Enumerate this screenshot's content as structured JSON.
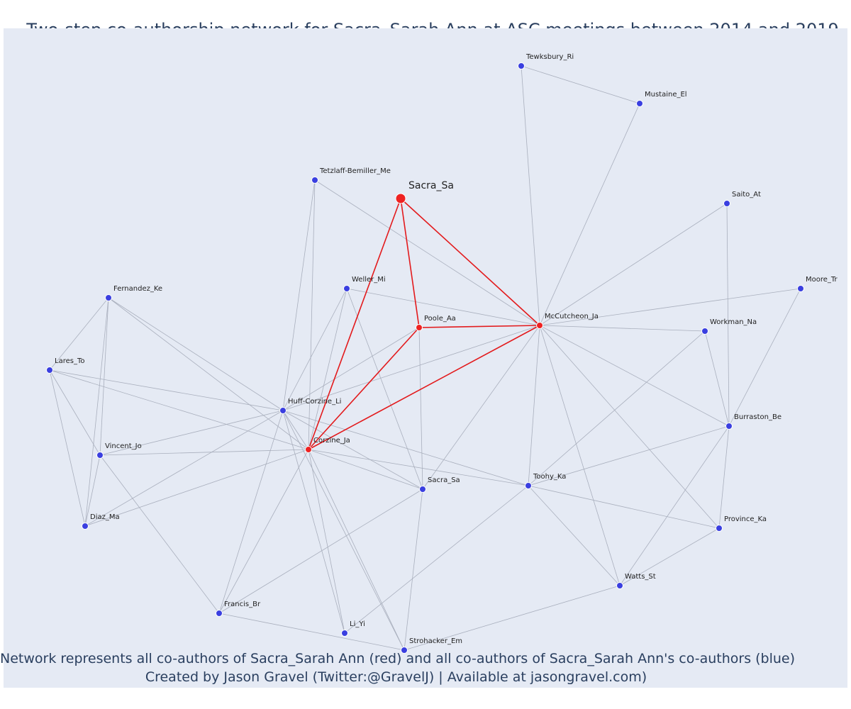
{
  "title": "Two-step co-authorship network for Sacra_Sarah Ann at ASC meetings between 2014 and 2019",
  "footer": {
    "line1": "Network represents all co-authors of Sacra_Sarah Ann (red) and all co-authors of Sacra_Sarah Ann's co-authors (blue)",
    "line2": "Created by Jason Gravel (Twitter:@GravelJ) | Available at jasongravel.com)"
  },
  "colors": {
    "background": "#e5eaf4",
    "red": "#ee2222",
    "blue": "#3a3fe0",
    "edge_gray": "#a9afbd",
    "edge_red": "#e31a1c",
    "text": "#2a3f5f"
  },
  "focus_node": "Sacra_Sa",
  "nodes": [
    {
      "id": "Sacra_Sa_focus",
      "label": "Sacra_Sa",
      "group": "focus"
    },
    {
      "id": "Poole_Aa",
      "label": "Poole_Aa",
      "group": "red"
    },
    {
      "id": "McCutcheon_Ja",
      "label": "McCutcheon_Ja",
      "group": "red"
    },
    {
      "id": "Corzine_Ja",
      "label": "Corzine_Ja",
      "group": "red"
    },
    {
      "id": "Tewksbury_Ri",
      "label": "Tewksbury_Ri",
      "group": "blue"
    },
    {
      "id": "Mustaine_El",
      "label": "Mustaine_El",
      "group": "blue"
    },
    {
      "id": "Tetzlaff-Bemiller_Me",
      "label": "Tetzlaff-Bemiller_Me",
      "group": "blue"
    },
    {
      "id": "Saito_At",
      "label": "Saito_At",
      "group": "blue"
    },
    {
      "id": "Weller_Mi",
      "label": "Weller_Mi",
      "group": "blue"
    },
    {
      "id": "Moore_Tr",
      "label": "Moore_Tr",
      "group": "blue"
    },
    {
      "id": "Fernandez_Ke",
      "label": "Fernandez_Ke",
      "group": "blue"
    },
    {
      "id": "Workman_Na",
      "label": "Workman_Na",
      "group": "blue"
    },
    {
      "id": "Lares_To",
      "label": "Lares_To",
      "group": "blue"
    },
    {
      "id": "Huff-Corzine_Li",
      "label": "Huff-Corzine_Li",
      "group": "blue"
    },
    {
      "id": "Burraston_Be",
      "label": "Burraston_Be",
      "group": "blue"
    },
    {
      "id": "Vincent_Jo",
      "label": "Vincent_Jo",
      "group": "blue"
    },
    {
      "id": "Sacra_Sa2",
      "label": "Sacra_Sa",
      "group": "blue"
    },
    {
      "id": "Toohy_Ka",
      "label": "Toohy_Ka",
      "group": "blue"
    },
    {
      "id": "Diaz_Ma",
      "label": "Diaz_Ma",
      "group": "blue"
    },
    {
      "id": "Province_Ka",
      "label": "Province_Ka",
      "group": "blue"
    },
    {
      "id": "Watts_St",
      "label": "Watts_St",
      "group": "blue"
    },
    {
      "id": "Francis_Br",
      "label": "Francis_Br",
      "group": "blue"
    },
    {
      "id": "Li_Yi",
      "label": "Li_Yi",
      "group": "blue"
    },
    {
      "id": "Strohacker_Em",
      "label": "Strohacker_Em",
      "group": "blue"
    }
  ],
  "edges": [
    [
      "Sacra_Sa_focus",
      "Poole_Aa",
      "red"
    ],
    [
      "Sacra_Sa_focus",
      "McCutcheon_Ja",
      "red"
    ],
    [
      "Sacra_Sa_focus",
      "Corzine_Ja",
      "red"
    ],
    [
      "Poole_Aa",
      "McCutcheon_Ja",
      "red"
    ],
    [
      "Poole_Aa",
      "Corzine_Ja",
      "red"
    ],
    [
      "McCutcheon_Ja",
      "Corzine_Ja",
      "red"
    ],
    [
      "Tewksbury_Ri",
      "Mustaine_El",
      "gray"
    ],
    [
      "Tewksbury_Ri",
      "McCutcheon_Ja",
      "gray"
    ],
    [
      "Mustaine_El",
      "McCutcheon_Ja",
      "gray"
    ],
    [
      "Tetzlaff-Bemiller_Me",
      "McCutcheon_Ja",
      "gray"
    ],
    [
      "Tetzlaff-Bemiller_Me",
      "Huff-Corzine_Li",
      "gray"
    ],
    [
      "Tetzlaff-Bemiller_Me",
      "Corzine_Ja",
      "gray"
    ],
    [
      "Saito_At",
      "McCutcheon_Ja",
      "gray"
    ],
    [
      "Saito_At",
      "Burraston_Be",
      "gray"
    ],
    [
      "Moore_Tr",
      "McCutcheon_Ja",
      "gray"
    ],
    [
      "Moore_Tr",
      "Burraston_Be",
      "gray"
    ],
    [
      "Workman_Na",
      "McCutcheon_Ja",
      "gray"
    ],
    [
      "Workman_Na",
      "Burraston_Be",
      "gray"
    ],
    [
      "Workman_Na",
      "Toohy_Ka",
      "gray"
    ],
    [
      "Weller_Mi",
      "McCutcheon_Ja",
      "gray"
    ],
    [
      "Weller_Mi",
      "Huff-Corzine_Li",
      "gray"
    ],
    [
      "Weller_Mi",
      "Corzine_Ja",
      "gray"
    ],
    [
      "Weller_Mi",
      "Sacra_Sa2",
      "gray"
    ],
    [
      "Poole_Aa",
      "Huff-Corzine_Li",
      "gray"
    ],
    [
      "Poole_Aa",
      "Sacra_Sa2",
      "gray"
    ],
    [
      "McCutcheon_Ja",
      "Huff-Corzine_Li",
      "gray"
    ],
    [
      "McCutcheon_Ja",
      "Burraston_Be",
      "gray"
    ],
    [
      "McCutcheon_Ja",
      "Sacra_Sa2",
      "gray"
    ],
    [
      "McCutcheon_Ja",
      "Toohy_Ka",
      "gray"
    ],
    [
      "McCutcheon_Ja",
      "Province_Ka",
      "gray"
    ],
    [
      "McCutcheon_Ja",
      "Watts_St",
      "gray"
    ],
    [
      "Fernandez_Ke",
      "Lares_To",
      "gray"
    ],
    [
      "Fernandez_Ke",
      "Vincent_Jo",
      "gray"
    ],
    [
      "Fernandez_Ke",
      "Diaz_Ma",
      "gray"
    ],
    [
      "Fernandez_Ke",
      "Huff-Corzine_Li",
      "gray"
    ],
    [
      "Fernandez_Ke",
      "Corzine_Ja",
      "gray"
    ],
    [
      "Lares_To",
      "Vincent_Jo",
      "gray"
    ],
    [
      "Lares_To",
      "Diaz_Ma",
      "gray"
    ],
    [
      "Lares_To",
      "Huff-Corzine_Li",
      "gray"
    ],
    [
      "Lares_To",
      "Corzine_Ja",
      "gray"
    ],
    [
      "Vincent_Jo",
      "Diaz_Ma",
      "gray"
    ],
    [
      "Vincent_Jo",
      "Huff-Corzine_Li",
      "gray"
    ],
    [
      "Vincent_Jo",
      "Corzine_Ja",
      "gray"
    ],
    [
      "Vincent_Jo",
      "Francis_Br",
      "gray"
    ],
    [
      "Diaz_Ma",
      "Huff-Corzine_Li",
      "gray"
    ],
    [
      "Diaz_Ma",
      "Corzine_Ja",
      "gray"
    ],
    [
      "Huff-Corzine_Li",
      "Corzine_Ja",
      "gray"
    ],
    [
      "Huff-Corzine_Li",
      "Sacra_Sa2",
      "gray"
    ],
    [
      "Huff-Corzine_Li",
      "Toohy_Ka",
      "gray"
    ],
    [
      "Huff-Corzine_Li",
      "Francis_Br",
      "gray"
    ],
    [
      "Huff-Corzine_Li",
      "Li_Yi",
      "gray"
    ],
    [
      "Huff-Corzine_Li",
      "Strohacker_Em",
      "gray"
    ],
    [
      "Corzine_Ja",
      "Sacra_Sa2",
      "gray"
    ],
    [
      "Corzine_Ja",
      "Toohy_Ka",
      "gray"
    ],
    [
      "Corzine_Ja",
      "Francis_Br",
      "gray"
    ],
    [
      "Corzine_Ja",
      "Li_Yi",
      "gray"
    ],
    [
      "Corzine_Ja",
      "Strohacker_Em",
      "gray"
    ],
    [
      "Sacra_Sa2",
      "Francis_Br",
      "gray"
    ],
    [
      "Sacra_Sa2",
      "Strohacker_Em",
      "gray"
    ],
    [
      "Toohy_Ka",
      "Burraston_Be",
      "gray"
    ],
    [
      "Toohy_Ka",
      "Province_Ka",
      "gray"
    ],
    [
      "Toohy_Ka",
      "Watts_St",
      "gray"
    ],
    [
      "Toohy_Ka",
      "Li_Yi",
      "gray"
    ],
    [
      "Burraston_Be",
      "Province_Ka",
      "gray"
    ],
    [
      "Burraston_Be",
      "Watts_St",
      "gray"
    ],
    [
      "Province_Ka",
      "Watts_St",
      "gray"
    ],
    [
      "Watts_St",
      "Strohacker_Em",
      "gray"
    ],
    [
      "Francis_Br",
      "Strohacker_Em",
      "gray"
    ]
  ]
}
